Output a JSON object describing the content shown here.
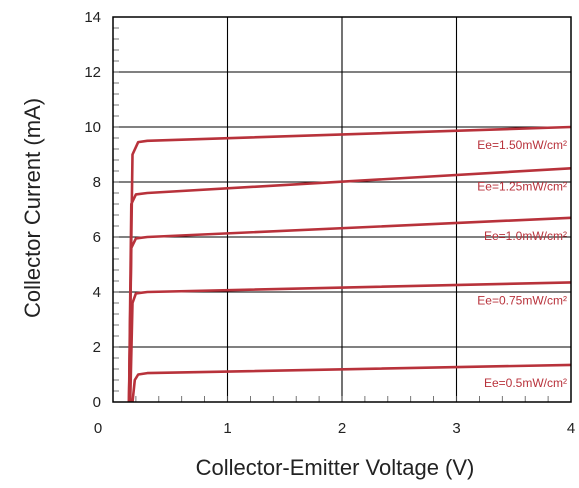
{
  "chart_data": {
    "type": "line",
    "xlabel": "Collector-Emitter Voltage (V)",
    "ylabel": "Collector Current (mA)",
    "xlim": [
      0,
      4
    ],
    "ylim": [
      0,
      14
    ],
    "x_ticks": [
      "0",
      "1",
      "2",
      "3",
      "4"
    ],
    "y_ticks": [
      "0",
      "2",
      "4",
      "6",
      "8",
      "10",
      "12",
      "14"
    ],
    "grid": true,
    "series_color": "#b8323b",
    "series": [
      {
        "name": "Ee=0.5mW/cm²",
        "x": [
          0.17,
          0.19,
          0.22,
          0.3,
          4.0
        ],
        "y": [
          0.0,
          0.8,
          1.0,
          1.05,
          1.35
        ]
      },
      {
        "name": "Ee=0.75mW/cm²",
        "x": [
          0.15,
          0.17,
          0.2,
          0.3,
          4.0
        ],
        "y": [
          0.0,
          3.6,
          3.95,
          4.0,
          4.35
        ]
      },
      {
        "name": "Ee=1.0mW/cm²",
        "x": [
          0.14,
          0.16,
          0.2,
          0.3,
          4.0
        ],
        "y": [
          0.0,
          5.6,
          5.95,
          6.0,
          6.7
        ]
      },
      {
        "name": "Ee=1.25mW/cm²",
        "x": [
          0.14,
          0.16,
          0.2,
          0.3,
          4.0
        ],
        "y": [
          0.0,
          7.2,
          7.55,
          7.6,
          8.5
        ]
      },
      {
        "name": "Ee=1.50mW/cm²",
        "x": [
          0.14,
          0.17,
          0.22,
          0.3,
          4.0
        ],
        "y": [
          0.0,
          9.0,
          9.45,
          9.5,
          10.0
        ]
      }
    ]
  }
}
